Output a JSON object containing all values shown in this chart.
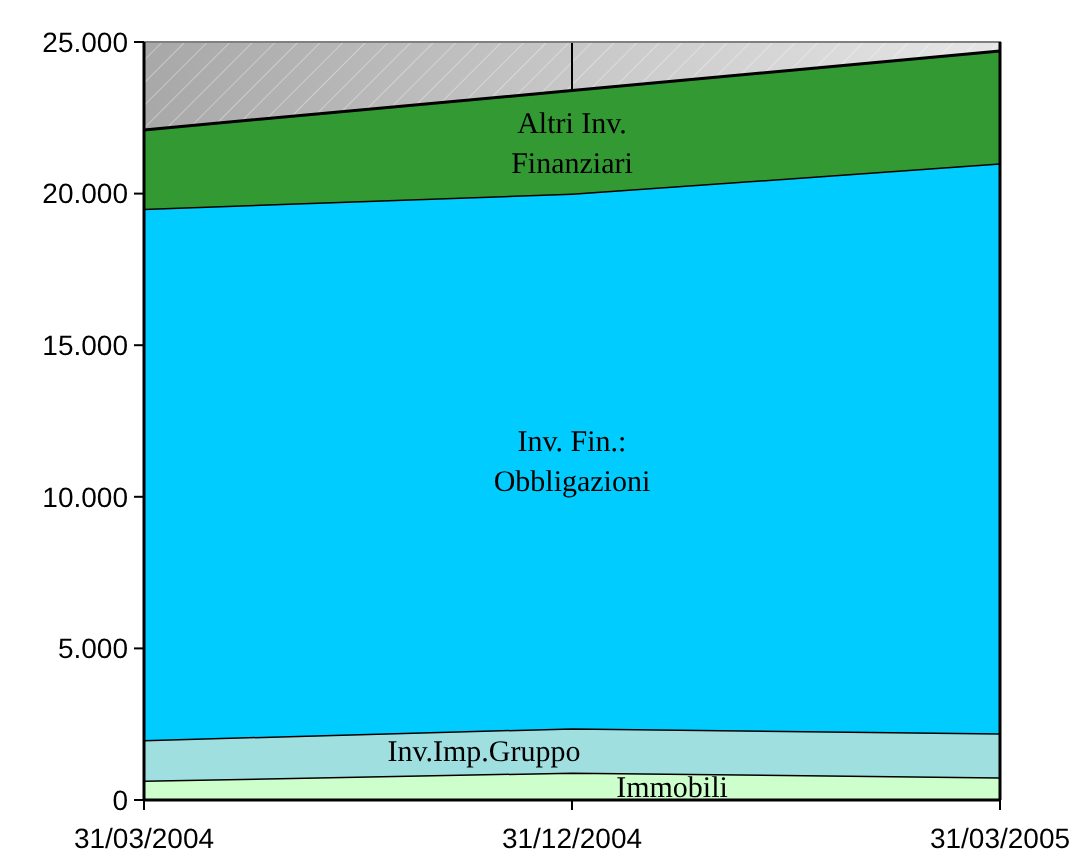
{
  "chart_data": {
    "type": "area",
    "stacked": true,
    "categories": [
      "31/03/2004",
      "31/12/2004",
      "31/03/2005"
    ],
    "series": [
      {
        "name": "Immobili",
        "color": "#ccffcc",
        "values": [
          640,
          910,
          750
        ]
      },
      {
        "name": "Inv.Imp.Gruppo",
        "color": "#a0dfe0",
        "values": [
          1340,
          1460,
          1450
        ]
      },
      {
        "name": "Inv. Fin.: Obbligazioni",
        "color": "#00ccff",
        "values": [
          17520,
          17630,
          18800
        ]
      },
      {
        "name": "Altri Inv. Finanziari",
        "color": "#339933",
        "values": [
          2600,
          3400,
          3700
        ]
      }
    ],
    "ylim": [
      0,
      25000
    ],
    "yticks": [
      {
        "value": 0,
        "label": "0"
      },
      {
        "value": 5000,
        "label": "5.000"
      },
      {
        "value": 10000,
        "label": "10.000"
      },
      {
        "value": 15000,
        "label": "15.000"
      },
      {
        "value": 20000,
        "label": "20.000"
      },
      {
        "value": 25000,
        "label": "25.000"
      }
    ],
    "grid": "x",
    "legend": false
  }
}
